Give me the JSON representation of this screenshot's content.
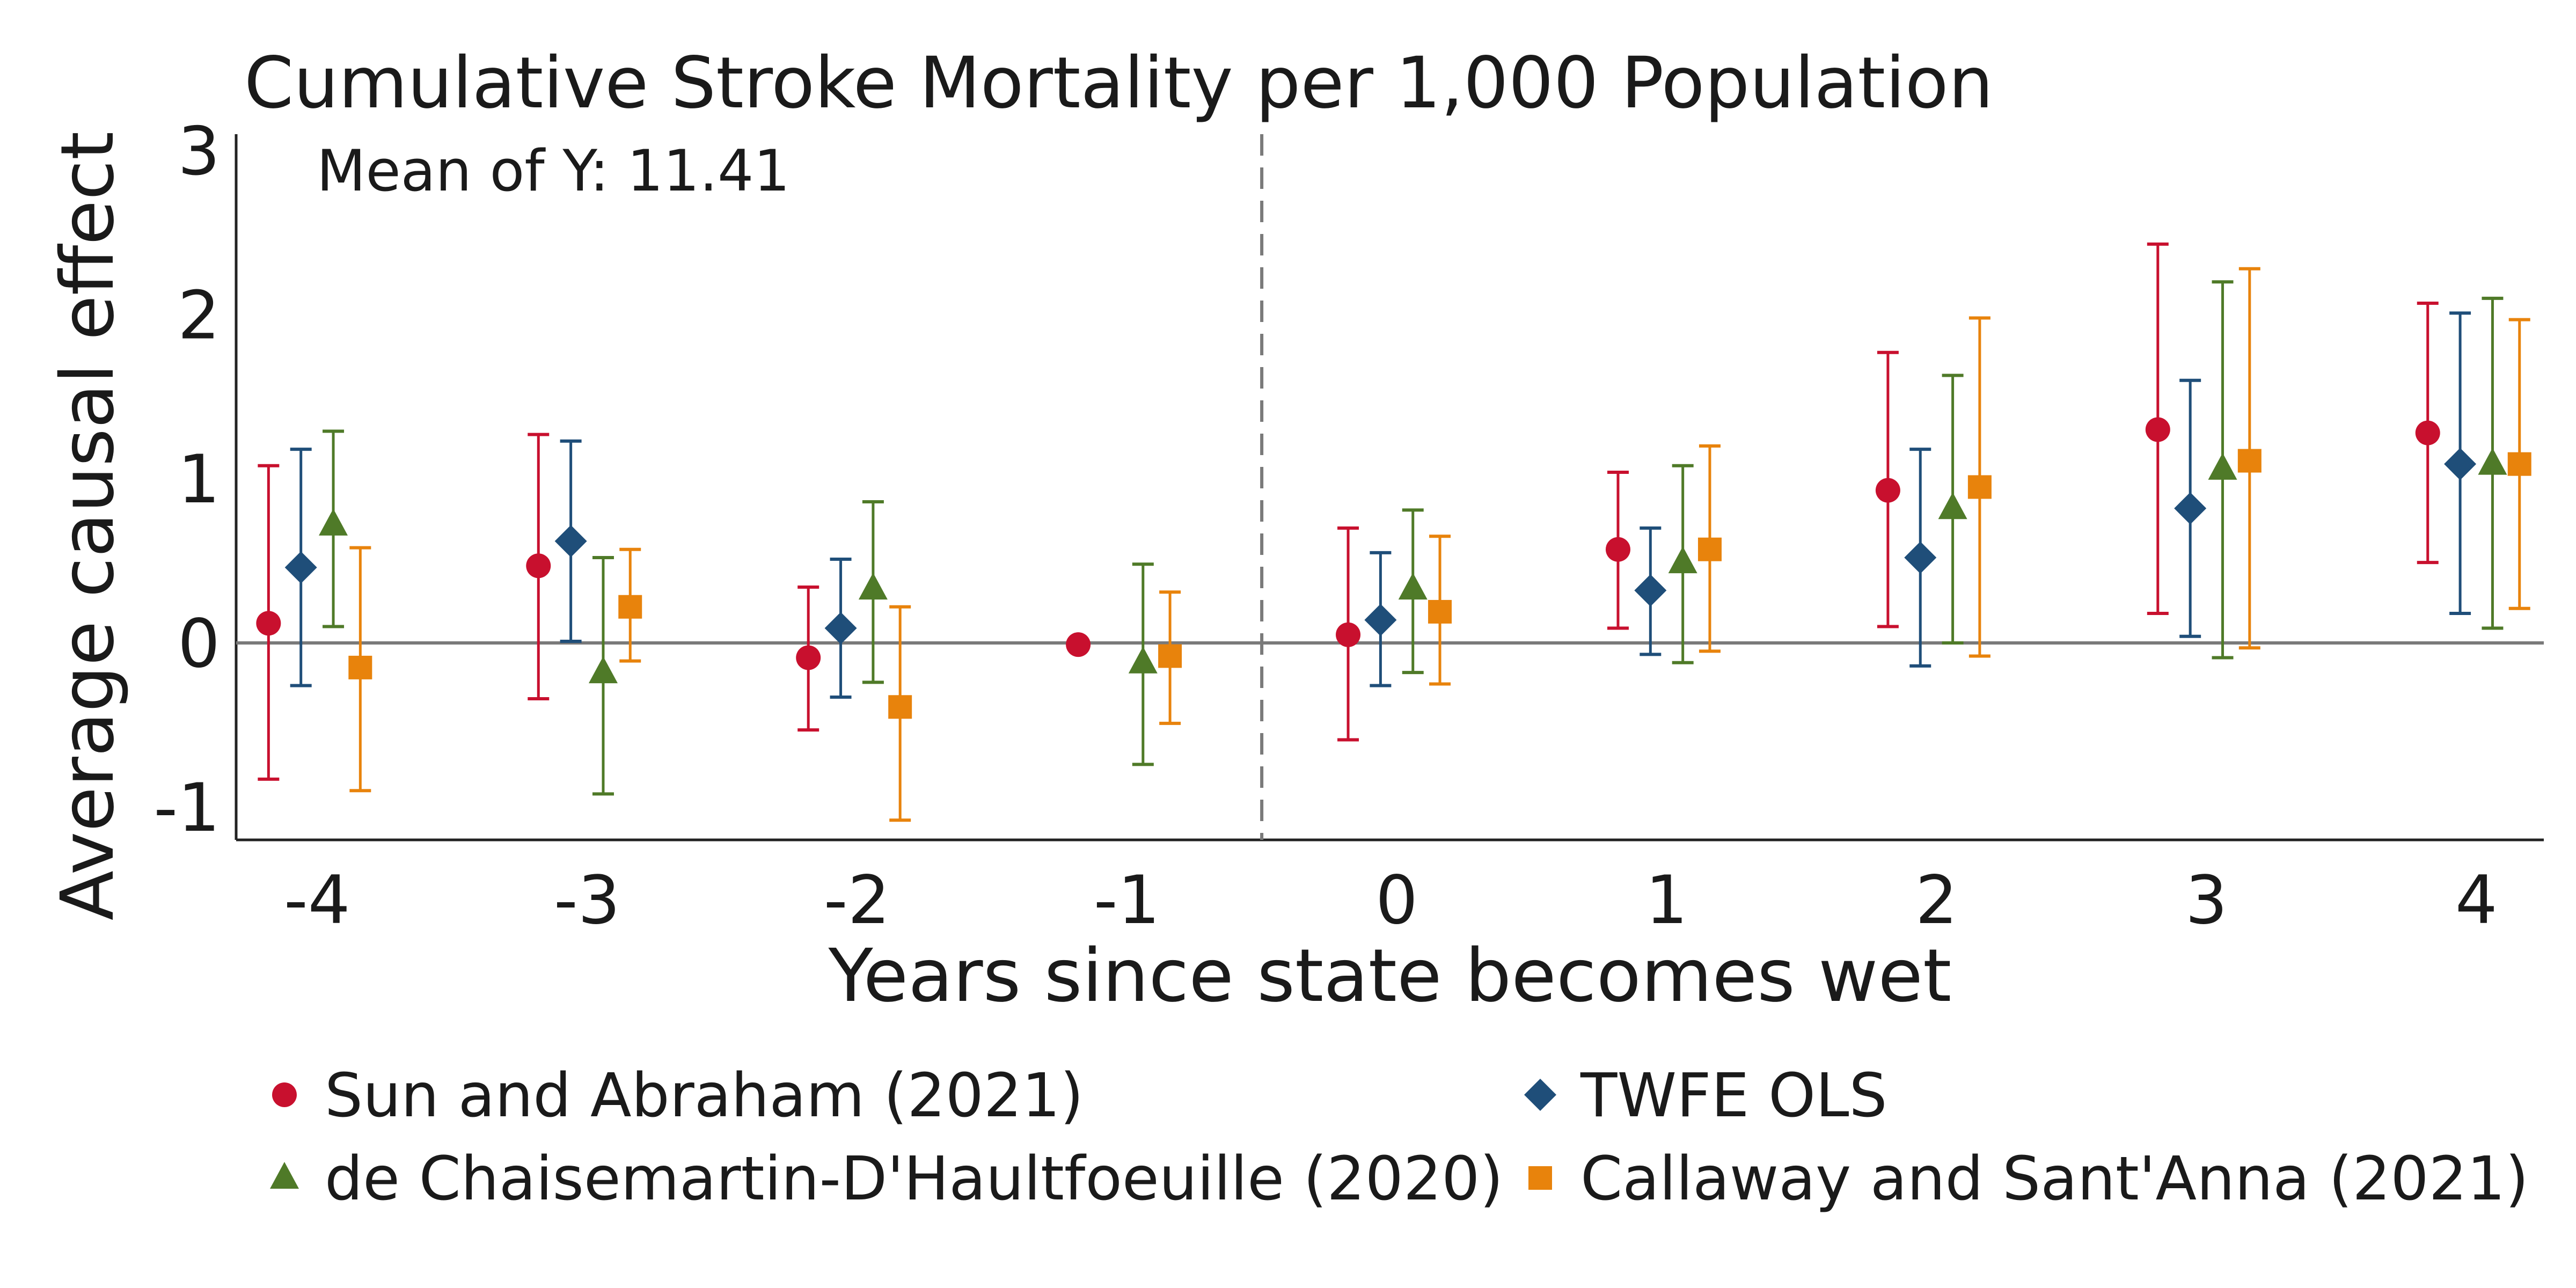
{
  "chart_data": {
    "type": "scatter",
    "subtype": "event-study point estimates with confidence intervals",
    "title": "Cumulative Stroke Mortality per 1,000 Population",
    "annotation": "Mean of Y: 11.41",
    "xlabel": "Years since state becomes wet",
    "ylabel": "Average causal effect",
    "x": [
      -4,
      -3,
      -2,
      -1,
      0,
      1,
      2,
      3,
      4
    ],
    "x_tick_labels": [
      "-4",
      "-3",
      "-2",
      "-1",
      "0",
      "1",
      "2",
      "3",
      "4"
    ],
    "y_ticks": [
      -1,
      0,
      1,
      2,
      3
    ],
    "y_tick_labels": [
      "-1",
      "0",
      "1",
      "2",
      "3"
    ],
    "ylim": [
      -1.2,
      3.1
    ],
    "xlim": [
      -4.3,
      4.25
    ],
    "reference_lines": {
      "horizontal_y": 0,
      "vertical_dashed_x": -0.5
    },
    "grid": false,
    "legend_position": "bottom",
    "series": [
      {
        "name": "Sun and Abraham (2021)",
        "marker": "circle",
        "color": "#c8102e",
        "offset": -0.18,
        "values": [
          0.12,
          0.47,
          -0.09,
          -0.01,
          0.05,
          0.57,
          0.93,
          1.3,
          1.28
        ],
        "lower": [
          -0.83,
          -0.34,
          -0.53,
          null,
          -0.59,
          0.09,
          0.1,
          0.18,
          0.49
        ],
        "upper": [
          1.08,
          1.27,
          0.34,
          null,
          0.7,
          1.04,
          1.77,
          2.43,
          2.07
        ]
      },
      {
        "name": "TWFE OLS",
        "marker": "diamond",
        "color": "#1f4e79",
        "offset": -0.06,
        "values": [
          0.46,
          0.62,
          0.09,
          null,
          0.14,
          0.32,
          0.52,
          0.82,
          1.09
        ],
        "lower": [
          -0.26,
          0.01,
          -0.33,
          null,
          -0.26,
          -0.07,
          -0.14,
          0.04,
          0.18
        ],
        "upper": [
          1.18,
          1.23,
          0.51,
          null,
          0.55,
          0.7,
          1.18,
          1.6,
          2.01
        ]
      },
      {
        "name": "de Chaisemartin-D'Haultfoeuille (2020)",
        "marker": "triangle",
        "color": "#4f7a28",
        "offset": 0.06,
        "values": [
          0.72,
          -0.18,
          0.33,
          -0.12,
          0.33,
          0.49,
          0.82,
          1.06,
          1.09
        ],
        "lower": [
          0.1,
          -0.92,
          -0.24,
          -0.74,
          -0.18,
          -0.12,
          0.0,
          -0.09,
          0.09
        ],
        "upper": [
          1.29,
          0.52,
          0.86,
          0.48,
          0.81,
          1.08,
          1.63,
          2.2,
          2.1
        ]
      },
      {
        "name": "Callaway and Sant'Anna (2021)",
        "marker": "square",
        "color": "#e8830c",
        "offset": 0.16,
        "values": [
          -0.15,
          0.22,
          -0.39,
          -0.08,
          0.19,
          0.57,
          0.95,
          1.11,
          1.09
        ],
        "lower": [
          -0.9,
          -0.11,
          -1.08,
          -0.49,
          -0.25,
          -0.05,
          -0.08,
          -0.03,
          0.21
        ],
        "upper": [
          0.58,
          0.57,
          0.22,
          0.31,
          0.65,
          1.2,
          1.98,
          2.28,
          1.97
        ]
      }
    ]
  }
}
